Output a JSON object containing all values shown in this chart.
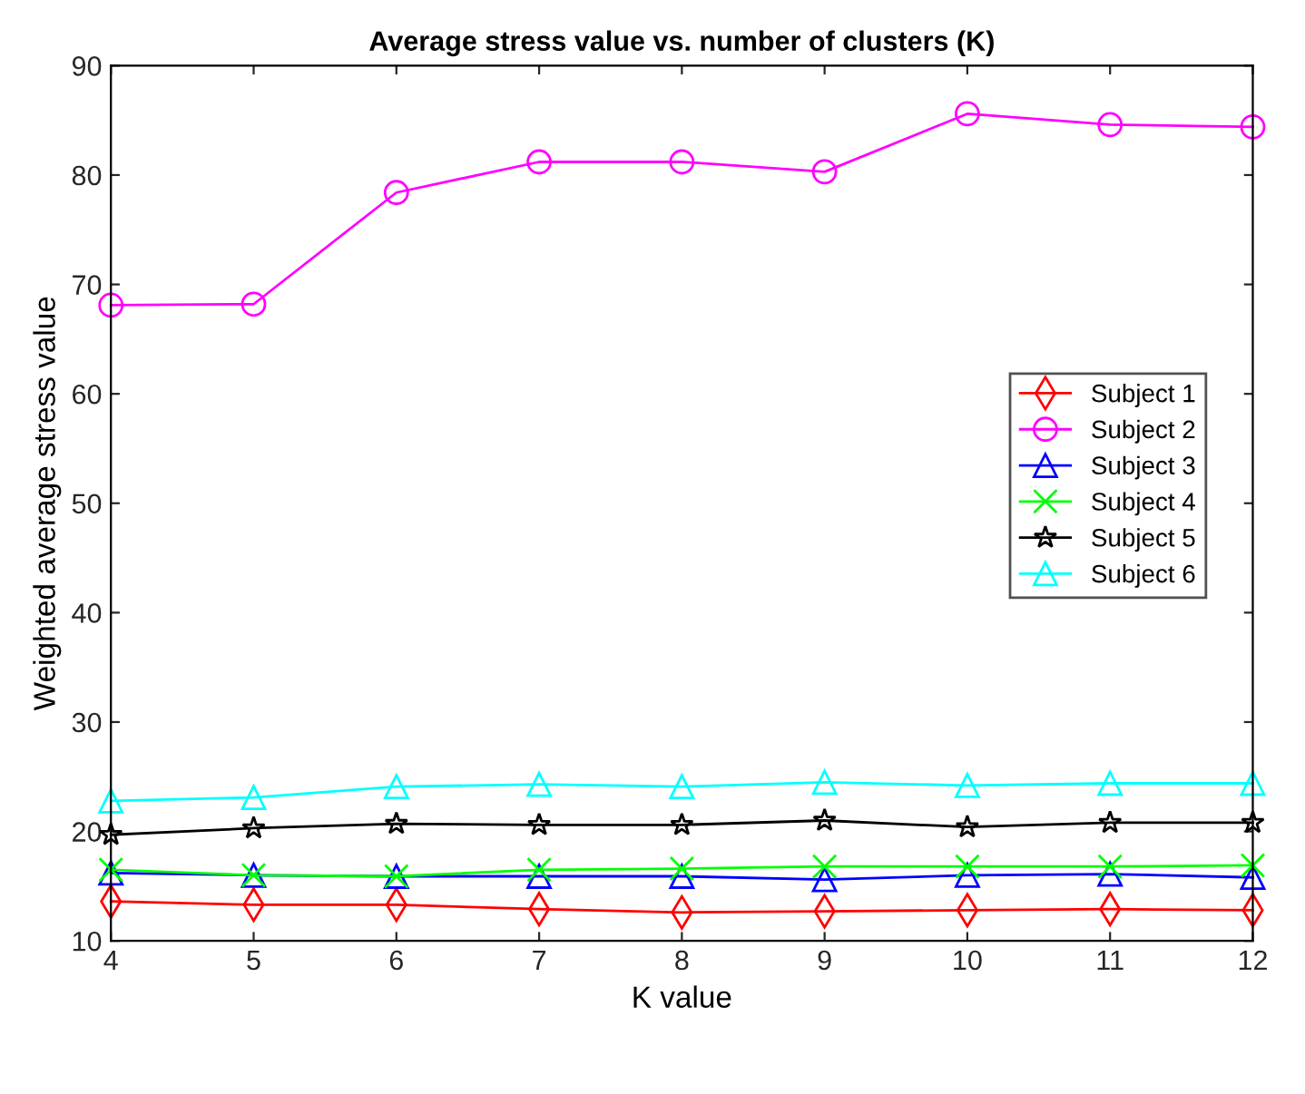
{
  "chart_data": {
    "type": "line",
    "title": "Average stress value vs. number of clusters (K)",
    "xlabel": "K value",
    "ylabel": "Weighted average stress value",
    "x": [
      4,
      5,
      6,
      7,
      8,
      9,
      10,
      11,
      12
    ],
    "series": [
      {
        "name": "Subject 1",
        "color": "#ff0000",
        "marker": "diamond",
        "values": [
          13.6,
          13.3,
          13.3,
          12.9,
          12.6,
          12.7,
          12.8,
          12.9,
          12.8
        ]
      },
      {
        "name": "Subject 2",
        "color": "#ff00ff",
        "marker": "circle",
        "values": [
          68.1,
          68.2,
          78.4,
          81.2,
          81.2,
          80.3,
          85.6,
          84.6,
          84.4
        ]
      },
      {
        "name": "Subject 3",
        "color": "#0000ff",
        "marker": "triangle",
        "values": [
          16.2,
          16.0,
          15.9,
          15.9,
          15.9,
          15.6,
          16.0,
          16.1,
          15.8
        ]
      },
      {
        "name": "Subject 4",
        "color": "#00ff00",
        "marker": "cross",
        "values": [
          16.5,
          16.0,
          15.9,
          16.5,
          16.6,
          16.8,
          16.8,
          16.8,
          16.9
        ]
      },
      {
        "name": "Subject 5",
        "color": "#000000",
        "marker": "star",
        "values": [
          19.7,
          20.3,
          20.7,
          20.6,
          20.6,
          21.0,
          20.4,
          20.8,
          20.8
        ]
      },
      {
        "name": "Subject 6",
        "color": "#00ffff",
        "marker": "triangle",
        "values": [
          22.8,
          23.1,
          24.1,
          24.3,
          24.1,
          24.5,
          24.2,
          24.4,
          24.4
        ]
      }
    ],
    "xlim": [
      4,
      12
    ],
    "xticks": [
      4,
      5,
      6,
      7,
      8,
      9,
      10,
      11,
      12
    ],
    "ylim": [
      10,
      90
    ],
    "yticks": [
      10,
      20,
      30,
      40,
      50,
      60,
      70,
      80,
      90
    ],
    "grid": false,
    "legend": "right",
    "line_style": "solid"
  }
}
